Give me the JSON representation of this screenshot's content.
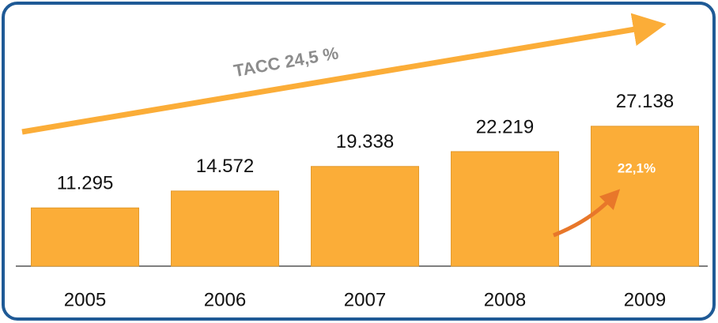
{
  "chart_data": {
    "type": "bar",
    "categories": [
      "2005",
      "2006",
      "2007",
      "2008",
      "2009"
    ],
    "values": [
      11295,
      14572,
      19338,
      22219,
      27138
    ],
    "value_labels": [
      "11.295",
      "14.572",
      "19.338",
      "22.219",
      "27.138"
    ],
    "color": "#fbad38",
    "ylim": [
      0,
      36000
    ],
    "annotations": [
      "TACC 24,5 %",
      "22,1%"
    ]
  }
}
